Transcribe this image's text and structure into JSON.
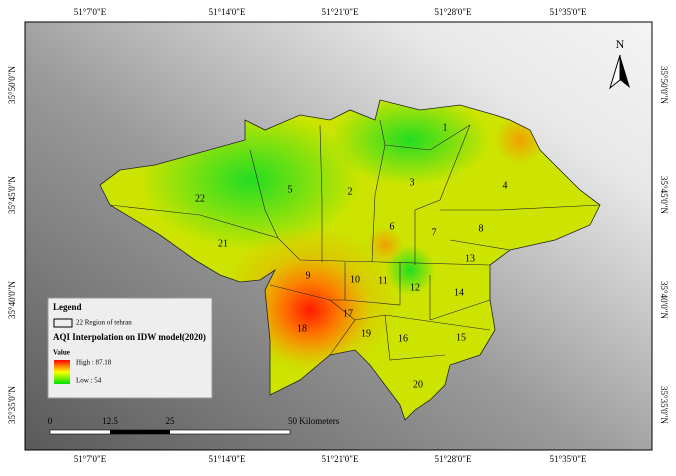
{
  "map": {
    "north_label": "N",
    "lon_labels": [
      "51°7'0\"E",
      "51°14'0\"E",
      "51°21'0\"E",
      "51°28'0\"E",
      "51°35'0\"E"
    ],
    "lat_labels": [
      "35°50'0\"N",
      "35°45'0\"N",
      "35°40'0\"N",
      "35°35'0\"N"
    ],
    "regions": [
      "1",
      "2",
      "3",
      "4",
      "5",
      "6",
      "7",
      "8",
      "9",
      "10",
      "11",
      "12",
      "13",
      "14",
      "15",
      "16",
      "17",
      "18",
      "19",
      "20",
      "21",
      "22"
    ],
    "legend": {
      "title": "Legend",
      "boundary_label": "22 Region of tehran",
      "map_title": "AQI Interpolation on IDW model(2020)",
      "value_title": "Value",
      "high": "High : 87.18",
      "low": "Low : 54"
    },
    "scale": {
      "labels": [
        "0",
        "12.5",
        "25",
        "50 Kilometers"
      ]
    }
  }
}
